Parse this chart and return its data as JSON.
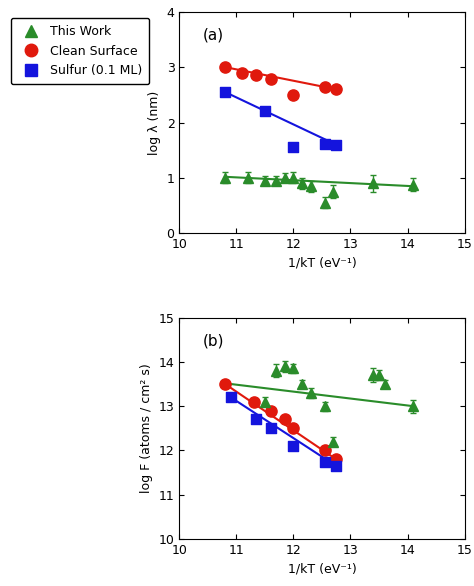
{
  "panel_a": {
    "label": "(a)",
    "xlabel": "1/kT (eV⁻¹)",
    "ylabel": "log λ (nm)",
    "xlim": [
      10,
      15
    ],
    "ylim": [
      0,
      4
    ],
    "xticks": [
      10,
      11,
      12,
      13,
      14,
      15
    ],
    "yticks": [
      0,
      1,
      2,
      3,
      4
    ],
    "green_x": [
      10.8,
      11.2,
      11.5,
      11.7,
      11.85,
      12.0,
      12.15,
      12.3,
      12.55,
      12.7,
      13.4,
      14.1
    ],
    "green_y": [
      1.0,
      1.0,
      0.95,
      0.95,
      1.0,
      1.0,
      0.9,
      0.85,
      0.55,
      0.75,
      0.9,
      0.88
    ],
    "green_yerr": [
      0.1,
      0.1,
      0.08,
      0.08,
      0.08,
      0.1,
      0.1,
      0.1,
      0.1,
      0.12,
      0.15,
      0.12
    ],
    "green_line_x": [
      10.8,
      14.1
    ],
    "green_line_y": [
      1.02,
      0.85
    ],
    "red_x": [
      10.8,
      11.1,
      11.35,
      11.6,
      12.0,
      12.55,
      12.75
    ],
    "red_y": [
      3.0,
      2.9,
      2.85,
      2.78,
      2.5,
      2.65,
      2.6
    ],
    "red_line_x": [
      10.8,
      12.75
    ],
    "red_line_y": [
      3.0,
      2.6
    ],
    "blue_x": [
      10.8,
      11.5,
      12.0,
      12.55,
      12.75
    ],
    "blue_y": [
      2.55,
      2.2,
      1.55,
      1.62,
      1.6
    ],
    "blue_line_x": [
      10.8,
      12.75
    ],
    "blue_line_y": [
      2.55,
      1.6
    ]
  },
  "panel_b": {
    "label": "(b)",
    "xlabel": "1/kT (eV⁻¹)",
    "ylabel": "log F (atoms / cm² s)",
    "xlim": [
      10,
      15
    ],
    "ylim": [
      10,
      15
    ],
    "xticks": [
      10,
      11,
      12,
      13,
      14,
      15
    ],
    "yticks": [
      10,
      11,
      12,
      13,
      14,
      15
    ],
    "green_x": [
      11.5,
      11.7,
      11.85,
      12.0,
      12.15,
      12.3,
      12.55,
      12.7,
      13.4,
      13.5,
      13.6,
      14.1
    ],
    "green_y": [
      13.1,
      13.8,
      13.9,
      13.85,
      13.5,
      13.3,
      13.0,
      12.2,
      13.7,
      13.7,
      13.5,
      13.0
    ],
    "green_yerr": [
      0.1,
      0.15,
      0.12,
      0.1,
      0.1,
      0.12,
      0.1,
      0.1,
      0.15,
      0.12,
      0.1,
      0.15
    ],
    "green_line_x": [
      10.9,
      14.1
    ],
    "green_line_y": [
      13.5,
      13.0
    ],
    "red_x": [
      10.8,
      11.3,
      11.6,
      11.85,
      12.0,
      12.55,
      12.75
    ],
    "red_y": [
      13.5,
      13.1,
      12.9,
      12.7,
      12.5,
      12.0,
      11.8
    ],
    "red_line_x": [
      10.8,
      12.75
    ],
    "red_line_y": [
      13.5,
      11.8
    ],
    "blue_x": [
      10.9,
      11.35,
      11.6,
      12.0,
      12.55,
      12.75
    ],
    "blue_y": [
      13.2,
      12.7,
      12.5,
      12.1,
      11.75,
      11.65
    ],
    "blue_line_x": [
      10.9,
      12.75
    ],
    "blue_line_y": [
      13.2,
      11.65
    ]
  },
  "legend": {
    "green_label": "This Work",
    "red_label": "Clean Surface",
    "blue_label": "Sulfur (0.1 ML)"
  },
  "colors": {
    "green": "#2a8c2a",
    "red": "#e0190d",
    "blue": "#1414dd"
  }
}
